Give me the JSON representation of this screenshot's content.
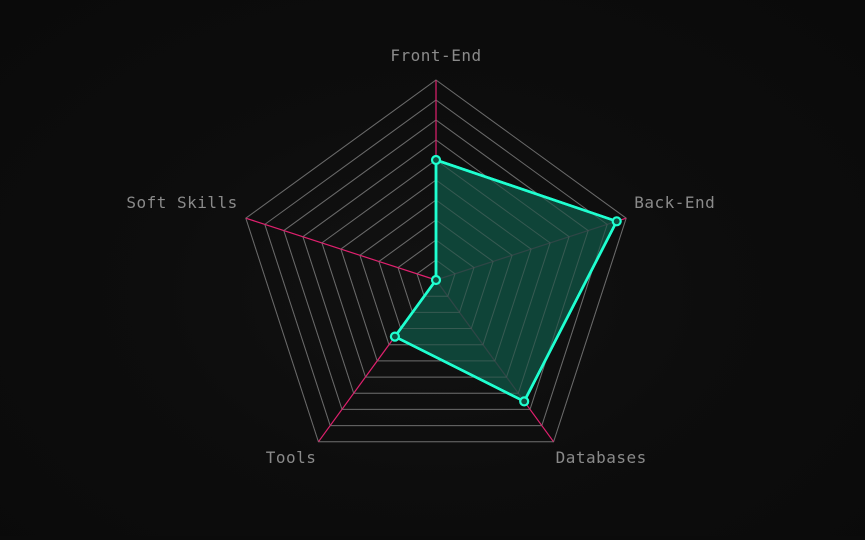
{
  "chart_data": {
    "type": "radar",
    "axes": [
      "Front-End",
      "Back-End",
      "Databases",
      "Tools",
      "Soft Skills"
    ],
    "values": [
      6,
      9.5,
      7.5,
      3.5,
      0
    ],
    "range": [
      0,
      10
    ],
    "levels": 10,
    "grid": true,
    "colors": {
      "grid": "#6a6a6a",
      "spokes": "#e0206e",
      "series_line": "#1fffd0",
      "series_fill": "#0f4d3f",
      "label": "#8a8a8a"
    }
  }
}
